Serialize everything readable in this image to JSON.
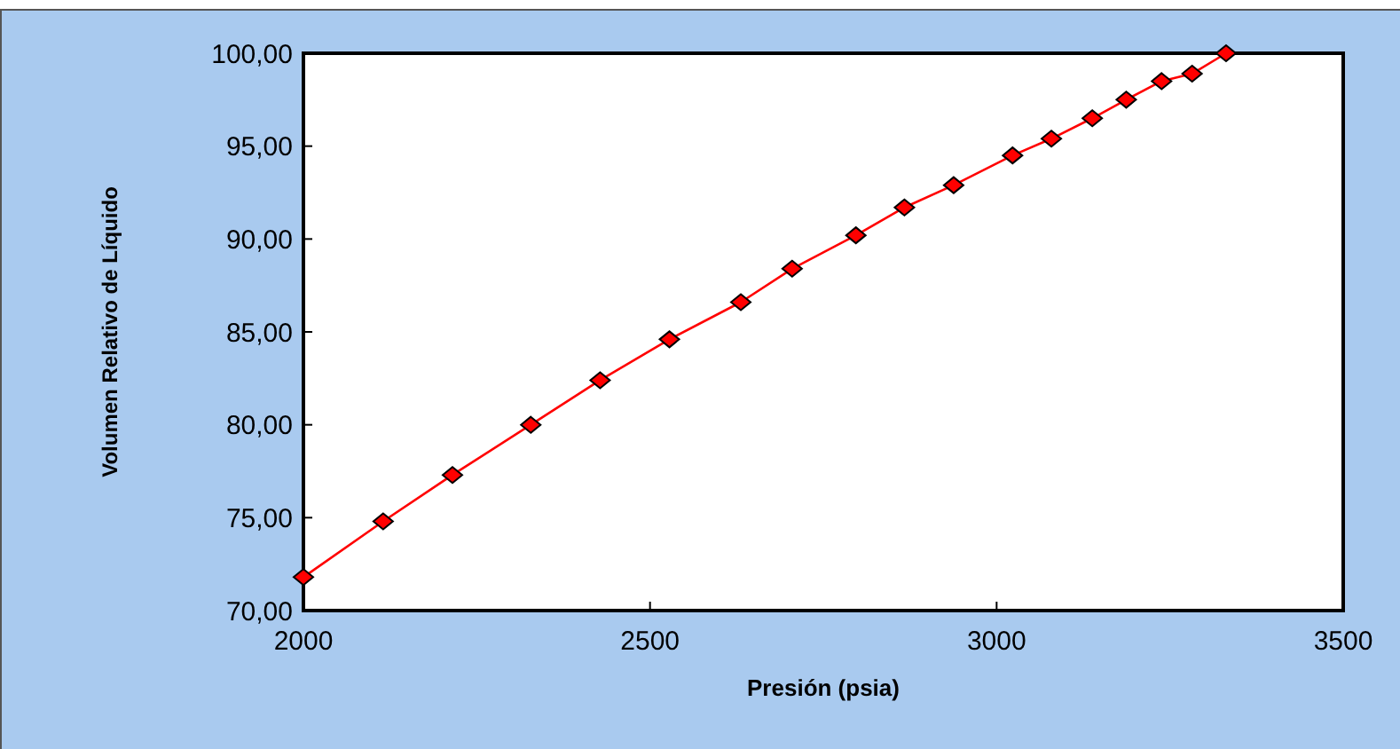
{
  "chart_data": {
    "type": "line",
    "xlabel": "Presión (psia)",
    "ylabel": "Volumen Relativo de Líquido",
    "x": [
      2000,
      2115,
      2215,
      2328,
      2428,
      2528,
      2631,
      2705,
      2797,
      2867,
      2938,
      3023,
      3079,
      3138,
      3187,
      3238,
      3282,
      3331
    ],
    "series": [
      {
        "color": "#ff0000",
        "values": [
          71.8,
          74.8,
          77.3,
          80.0,
          82.4,
          84.6,
          86.6,
          88.4,
          90.2,
          91.7,
          92.9,
          94.5,
          95.4,
          96.5,
          97.5,
          98.5,
          98.9,
          100.0
        ]
      }
    ],
    "xlim": [
      2000,
      3500
    ],
    "xticks": [
      2000,
      2500,
      3000,
      3500
    ],
    "ylim": [
      70,
      100
    ],
    "yticks": [
      {
        "value": 70,
        "label": "70,00"
      },
      {
        "value": 75,
        "label": "75,00"
      },
      {
        "value": 80,
        "label": "80,00"
      },
      {
        "value": 85,
        "label": "85,00"
      },
      {
        "value": 90,
        "label": "90,00"
      },
      {
        "value": 95,
        "label": "95,00"
      },
      {
        "value": 100,
        "label": "100,00"
      }
    ],
    "marker": "diamond",
    "line_style": "solid"
  }
}
